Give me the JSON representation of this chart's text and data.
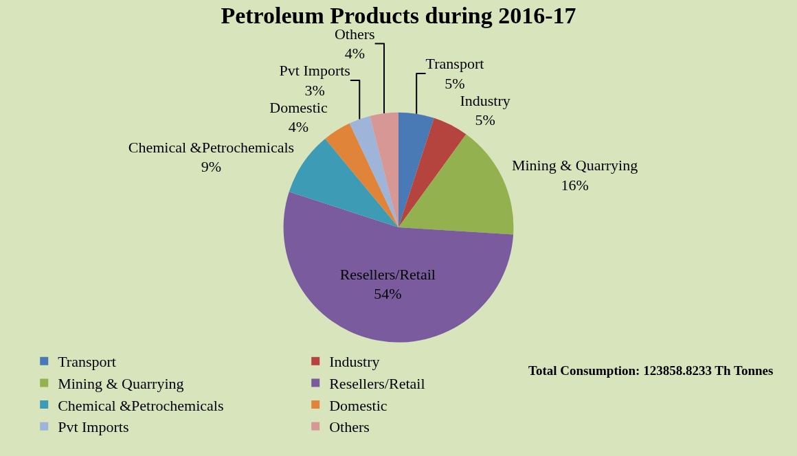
{
  "chart_data": {
    "type": "pie",
    "title": "Petroleum Products during 2016-17",
    "categories": [
      "Transport",
      "Industry",
      "Mining & Quarrying",
      "Resellers/Retail",
      "Chemical &Petrochemicals",
      "Domestic",
      "Pvt Imports",
      "Others"
    ],
    "values": [
      5,
      5,
      16,
      54,
      9,
      4,
      3,
      4
    ],
    "value_labels": [
      "5%",
      "5%",
      "16%",
      "54%",
      "9%",
      "4%",
      "3%",
      "4%"
    ],
    "colors": [
      "#4a7ab5",
      "#b5443f",
      "#93b24f",
      "#7a5c9e",
      "#3d9bb5",
      "#e0843a",
      "#9fb4d9",
      "#d79795"
    ],
    "annotations": [
      "Total Consumption: 123858.8233 Th Tonnes"
    ],
    "legend": "bottom"
  }
}
